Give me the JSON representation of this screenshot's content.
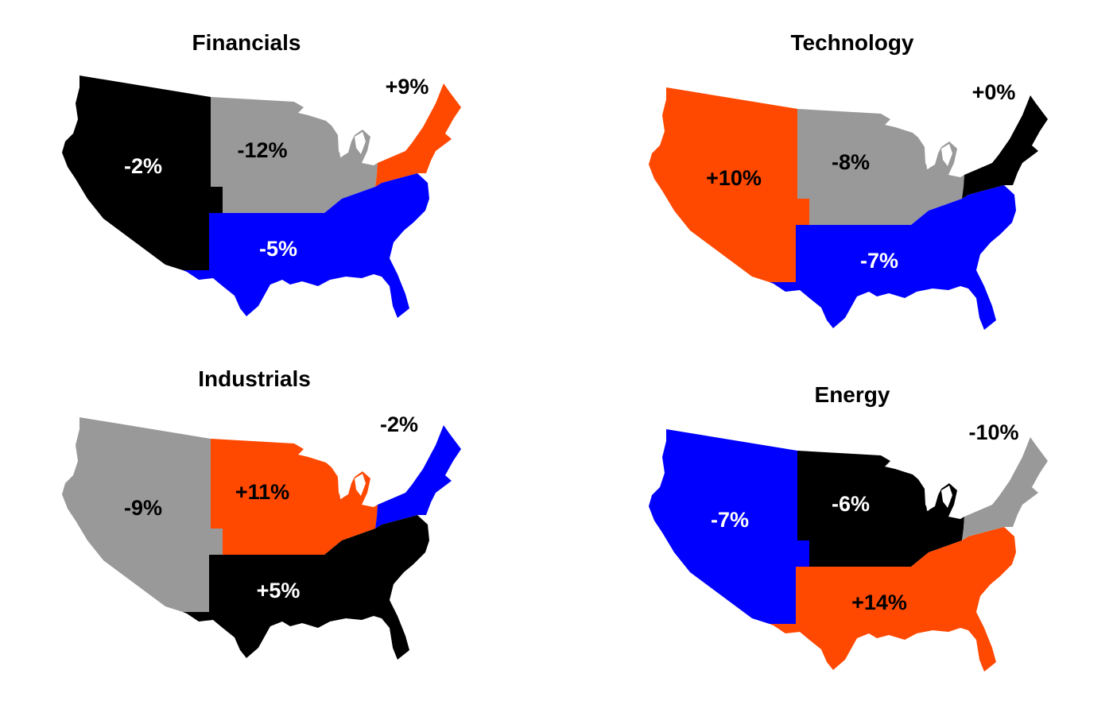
{
  "colors": {
    "black": "#000000",
    "gray": "#999999",
    "orange": "#ff4800",
    "blue": "#0000ff",
    "white": "#ffffff"
  },
  "maps": [
    {
      "title": "Financials",
      "regions": {
        "west": {
          "label": "-2%",
          "fill": "black",
          "text": "white"
        },
        "midwest": {
          "label": "-12%",
          "fill": "gray",
          "text": "black"
        },
        "south": {
          "label": "-5%",
          "fill": "blue",
          "text": "white"
        },
        "northeast": {
          "label": "+9%",
          "fill": "orange",
          "text": "black"
        }
      }
    },
    {
      "title": "Technology",
      "regions": {
        "west": {
          "label": "+10%",
          "fill": "orange",
          "text": "black"
        },
        "midwest": {
          "label": "-8%",
          "fill": "gray",
          "text": "black"
        },
        "south": {
          "label": "-7%",
          "fill": "blue",
          "text": "white"
        },
        "northeast": {
          "label": "+0%",
          "fill": "black",
          "text": "black"
        }
      }
    },
    {
      "title": "Industrials",
      "regions": {
        "west": {
          "label": "-9%",
          "fill": "gray",
          "text": "black"
        },
        "midwest": {
          "label": "+11%",
          "fill": "orange",
          "text": "black"
        },
        "south": {
          "label": "+5%",
          "fill": "black",
          "text": "white"
        },
        "northeast": {
          "label": "-2%",
          "fill": "blue",
          "text": "black"
        }
      }
    },
    {
      "title": "Energy",
      "regions": {
        "west": {
          "label": "-7%",
          "fill": "blue",
          "text": "white"
        },
        "midwest": {
          "label": "-6%",
          "fill": "black",
          "text": "white"
        },
        "south": {
          "label": "+14%",
          "fill": "orange",
          "text": "black"
        },
        "northeast": {
          "label": "-10%",
          "fill": "gray",
          "text": "black"
        }
      }
    }
  ]
}
